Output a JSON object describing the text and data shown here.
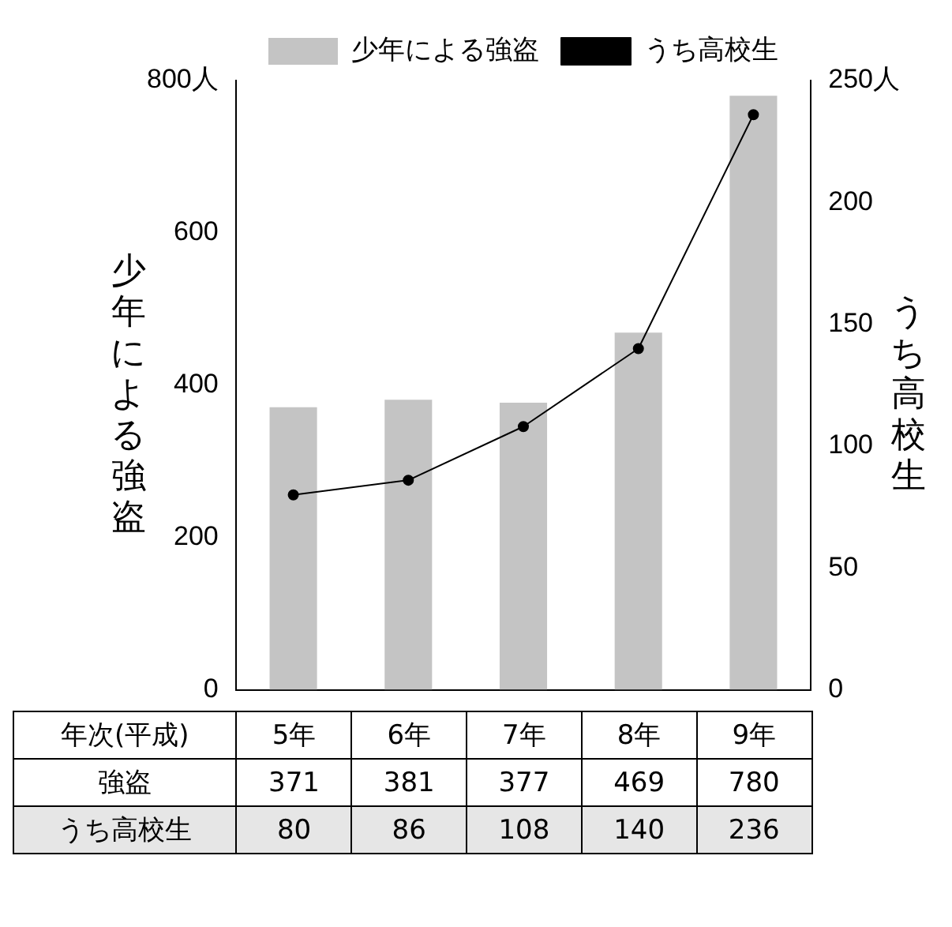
{
  "chart_data": {
    "type": "bar",
    "categories": [
      "5年",
      "6年",
      "7年",
      "8年",
      "9年"
    ],
    "series": [
      {
        "name": "少年による強盗",
        "color": "#c4c4c4",
        "values": [
          371,
          381,
          377,
          469,
          780
        ]
      },
      {
        "name": "うち高校生",
        "type": "line",
        "axis": "y2",
        "color": "#000000",
        "values": [
          80,
          86,
          108,
          140,
          236
        ]
      }
    ],
    "ylabel": "少年による強盗",
    "y2label": "うち高校生",
    "ylim": [
      0,
      800
    ],
    "yticks": [
      0,
      200,
      400,
      600,
      {
        "value": 800,
        "label": "800人"
      }
    ],
    "y2lim": [
      0,
      250
    ],
    "y2ticks": [
      0,
      50,
      100,
      150,
      200,
      {
        "value": 250,
        "label": "250人"
      }
    ],
    "legend": "top",
    "marker": "circle",
    "grid": false,
    "data_labels": true,
    "annotations": [
      "年次(平成)",
      "強盗"
    ]
  }
}
